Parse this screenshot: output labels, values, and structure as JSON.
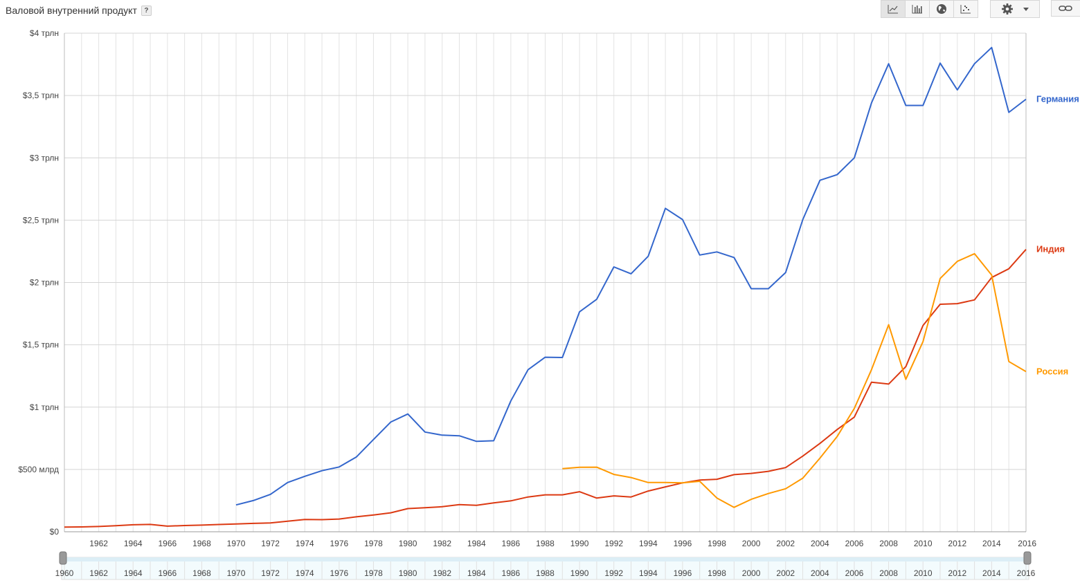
{
  "header": {
    "title": "Валовой внутренний продукт",
    "help": "?"
  },
  "toolbar": {
    "buttons": [
      {
        "name": "line-chart-button",
        "icon": "line-chart-icon",
        "active": true
      },
      {
        "name": "bar-chart-button",
        "icon": "bar-chart-icon",
        "active": false
      },
      {
        "name": "map-button",
        "icon": "globe-icon",
        "active": false
      },
      {
        "name": "scatter-button",
        "icon": "scatter-chart-icon",
        "active": false
      }
    ],
    "settings_icon": "gear-icon",
    "dropdown_icon": "caret-down-icon",
    "link_icon": "link-icon"
  },
  "chart_data": {
    "type": "line",
    "title": "Валовой внутренний продукт",
    "xlim": [
      1960,
      2016
    ],
    "ylim": [
      0,
      4000
    ],
    "y_unit": "млрд $",
    "y_ticks": [
      {
        "value": 0,
        "label": "$0"
      },
      {
        "value": 500,
        "label": "$500 млрд"
      },
      {
        "value": 1000,
        "label": "$1 трлн"
      },
      {
        "value": 1500,
        "label": "$1,5 трлн"
      },
      {
        "value": 2000,
        "label": "$2 трлн"
      },
      {
        "value": 2500,
        "label": "$2,5 трлн"
      },
      {
        "value": 3000,
        "label": "$3 трлн"
      },
      {
        "value": 3500,
        "label": "$3,5 трлн"
      },
      {
        "value": 4000,
        "label": "$4 трлн"
      }
    ],
    "x_ticks": [
      "1962",
      "1964",
      "1966",
      "1968",
      "1970",
      "1972",
      "1974",
      "1976",
      "1978",
      "1980",
      "1982",
      "1984",
      "1986",
      "1988",
      "1990",
      "1992",
      "1994",
      "1996",
      "1998",
      "2000",
      "2002",
      "2004",
      "2006",
      "2008",
      "2010",
      "2012",
      "2014",
      "2016"
    ],
    "navigator_ticks": [
      "1960",
      "1962",
      "1964",
      "1966",
      "1968",
      "1970",
      "1972",
      "1974",
      "1976",
      "1978",
      "1980",
      "1982",
      "1984",
      "1986",
      "1988",
      "1990",
      "1992",
      "1994",
      "1996",
      "1998",
      "2000",
      "2002",
      "2004",
      "2006",
      "2008",
      "2010",
      "2012",
      "2014",
      "2016"
    ],
    "grid": true,
    "series": [
      {
        "name": "Германия",
        "color": "#3366cc",
        "x": [
          1970,
          1971,
          1972,
          1973,
          1974,
          1975,
          1976,
          1977,
          1978,
          1979,
          1980,
          1981,
          1982,
          1983,
          1984,
          1985,
          1986,
          1987,
          1988,
          1989,
          1990,
          1991,
          1992,
          1993,
          1994,
          1995,
          1996,
          1997,
          1998,
          1999,
          2000,
          2001,
          2002,
          2003,
          2004,
          2005,
          2006,
          2007,
          2008,
          2009,
          2010,
          2011,
          2012,
          2013,
          2014,
          2015,
          2016
        ],
        "values": [
          215,
          250,
          300,
          395,
          445,
          490,
          520,
          600,
          740,
          880,
          945,
          800,
          775,
          770,
          725,
          730,
          1050,
          1300,
          1400,
          1398,
          1765,
          1865,
          2125,
          2070,
          2210,
          2595,
          2505,
          2220,
          2245,
          2200,
          1950,
          1950,
          2080,
          2505,
          2820,
          2865,
          3000,
          3440,
          3755,
          3420,
          3420,
          3760,
          3545,
          3755,
          3885,
          3365,
          3470
        ]
      },
      {
        "name": "Индия",
        "color": "#dc3912",
        "x": [
          1960,
          1961,
          1962,
          1963,
          1964,
          1965,
          1966,
          1967,
          1968,
          1969,
          1970,
          1971,
          1972,
          1973,
          1974,
          1975,
          1976,
          1977,
          1978,
          1979,
          1980,
          1981,
          1982,
          1983,
          1984,
          1985,
          1986,
          1987,
          1988,
          1989,
          1990,
          1991,
          1992,
          1993,
          1994,
          1995,
          1996,
          1997,
          1998,
          1999,
          2000,
          2001,
          2002,
          2003,
          2004,
          2005,
          2006,
          2007,
          2008,
          2009,
          2010,
          2011,
          2012,
          2013,
          2014,
          2015,
          2016
        ],
        "values": [
          37,
          39,
          42,
          48,
          56,
          59,
          45,
          50,
          53,
          58,
          62,
          67,
          71,
          85,
          99,
          97,
          102,
          120,
          135,
          152,
          186,
          193,
          201,
          218,
          212,
          232,
          248,
          279,
          296,
          296,
          321,
          270,
          288,
          279,
          327,
          360,
          392,
          415,
          421,
          458,
          468,
          485,
          515,
          607,
          709,
          820,
          920,
          1200,
          1185,
          1325,
          1655,
          1825,
          1830,
          1860,
          2040,
          2110,
          2265
        ]
      },
      {
        "name": "Россия",
        "color": "#ff9900",
        "x": [
          1989,
          1990,
          1991,
          1992,
          1993,
          1994,
          1995,
          1996,
          1997,
          1998,
          1999,
          2000,
          2001,
          2002,
          2003,
          2004,
          2005,
          2006,
          2007,
          2008,
          2009,
          2010,
          2011,
          2012,
          2013,
          2014,
          2015,
          2016
        ],
        "values": [
          506,
          517,
          518,
          460,
          435,
          395,
          395,
          392,
          405,
          271,
          196,
          260,
          307,
          345,
          430,
          591,
          764,
          990,
          1300,
          1661,
          1223,
          1525,
          2032,
          2170,
          2231,
          2060,
          1366,
          1285
        ]
      }
    ]
  }
}
